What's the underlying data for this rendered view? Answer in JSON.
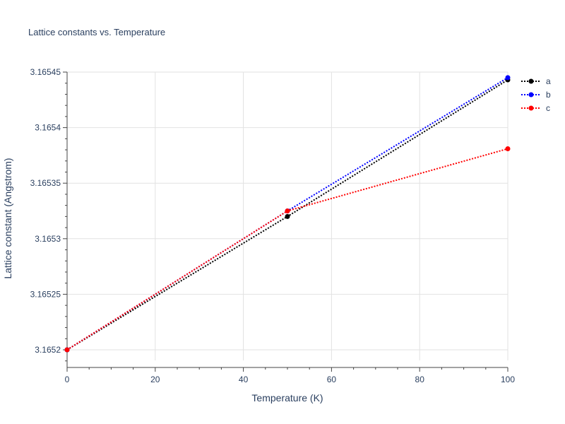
{
  "chart_data": {
    "type": "line",
    "title": "Lattice constants vs. Temperature",
    "xlabel": "Temperature (K)",
    "ylabel": "Lattice constant (Angstrom)",
    "xlim": [
      0,
      100
    ],
    "ylim": [
      3.16519,
      3.16545
    ],
    "x_ticks": [
      0,
      20,
      40,
      60,
      80,
      100
    ],
    "x_tick_labels": [
      "0",
      "20",
      "40",
      "60",
      "80",
      "100"
    ],
    "y_ticks": [
      3.1652,
      3.16525,
      3.1653,
      3.16535,
      3.1654,
      3.16545
    ],
    "y_tick_labels": [
      "3.1652",
      "3.16525",
      "3.1653",
      "3.16535",
      "3.1654",
      "3.16545"
    ],
    "grid": true,
    "legend_position": "top-right",
    "series": [
      {
        "name": "a",
        "color": "#000000",
        "x": [
          0,
          50,
          100
        ],
        "y": [
          3.1652,
          3.16532,
          3.165443
        ]
      },
      {
        "name": "b",
        "color": "#0000ff",
        "x": [
          0,
          50,
          100
        ],
        "y": [
          3.1652,
          3.165325,
          3.165445
        ]
      },
      {
        "name": "c",
        "color": "#ff0000",
        "x": [
          0,
          50,
          100
        ],
        "y": [
          3.1652,
          3.165325,
          3.165381
        ]
      }
    ]
  }
}
